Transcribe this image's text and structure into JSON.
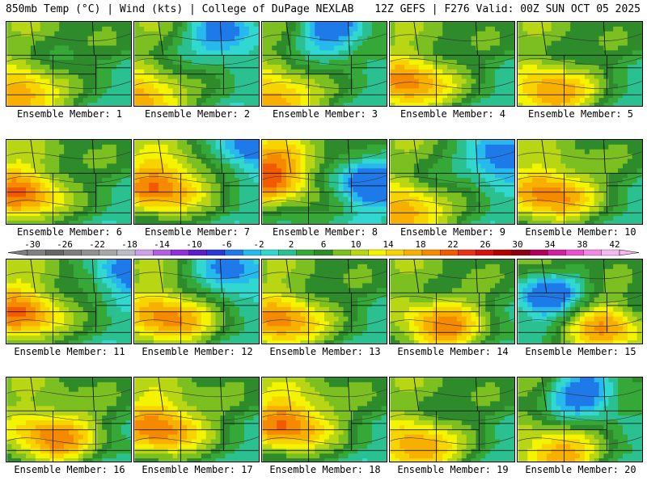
{
  "header": {
    "title_left": "850mb Temp (°C) | Wind (kts) | College of DuPage NEXLAB",
    "title_right": "12Z GEFS | F276 Valid: 00Z SUN OCT 05 2025"
  },
  "label_prefix": "Ensemble Member: ",
  "members": [
    {
      "id": "1",
      "warm": [
        0.1,
        0.9
      ],
      "cool": null
    },
    {
      "id": "2",
      "warm": [
        0.05,
        0.95
      ],
      "cool": [
        0.7,
        0.1
      ]
    },
    {
      "id": "3",
      "warm": [
        0.1,
        0.95
      ],
      "cool": [
        0.55,
        0.05
      ]
    },
    {
      "id": "4",
      "warm": [
        0.15,
        0.75
      ],
      "cool": null
    },
    {
      "id": "5",
      "warm": [
        0.25,
        0.85
      ],
      "cool": null
    },
    {
      "id": "6",
      "warm": [
        0.1,
        0.65
      ],
      "cool": null
    },
    {
      "id": "7",
      "warm": [
        0.2,
        0.55
      ],
      "cool": [
        0.9,
        0.05
      ]
    },
    {
      "id": "8",
      "warm": [
        0.05,
        0.4
      ],
      "cool": [
        0.85,
        0.45
      ]
    },
    {
      "id": "9",
      "warm": [
        0.1,
        0.9
      ],
      "cool": [
        0.85,
        0.15
      ]
    },
    {
      "id": "10",
      "warm": [
        0.25,
        0.65
      ],
      "cool": null
    },
    {
      "id": "11",
      "warm": [
        0.1,
        0.65
      ],
      "cool": [
        0.95,
        0.1
      ]
    },
    {
      "id": "12",
      "warm": [
        0.25,
        0.7
      ],
      "cool": [
        0.75,
        0.1
      ]
    },
    {
      "id": "13",
      "warm": [
        0.15,
        0.75
      ],
      "cool": null
    },
    {
      "id": "14",
      "warm": [
        0.4,
        0.8
      ],
      "cool": null
    },
    {
      "id": "15",
      "warm": [
        0.7,
        0.85
      ],
      "cool": [
        0.2,
        0.4
      ]
    },
    {
      "id": "16",
      "warm": [
        0.35,
        0.7
      ],
      "cool": null
    },
    {
      "id": "17",
      "warm": [
        0.2,
        0.6
      ],
      "cool": null
    },
    {
      "id": "18",
      "warm": [
        0.2,
        0.55
      ],
      "cool": null
    },
    {
      "id": "19",
      "warm": [
        0.2,
        0.85
      ],
      "cool": null
    },
    {
      "id": "20",
      "warm": [
        0.3,
        0.95
      ],
      "cool": [
        0.5,
        0.15
      ]
    }
  ],
  "colorbar": {
    "ticks": [
      "-30",
      "-26",
      "-22",
      "-18",
      "-14",
      "-10",
      "-6",
      "-2",
      "2",
      "6",
      "10",
      "14",
      "18",
      "22",
      "26",
      "30",
      "34",
      "38",
      "42"
    ],
    "colors": [
      "#7f7f7f",
      "#666666",
      "#7d7d7d",
      "#909090",
      "#a7a7a7",
      "#bcbcc8",
      "#cfa0e8",
      "#b060e0",
      "#9030d8",
      "#5a1fc8",
      "#2a3ad8",
      "#1e7ae8",
      "#27b9ee",
      "#30d8d0",
      "#2bc090",
      "#35a838",
      "#2e8b2b",
      "#7bbf20",
      "#b8d614",
      "#f4f400",
      "#f7d400",
      "#f8b000",
      "#f58a00",
      "#f25a00",
      "#e83218",
      "#d41010",
      "#b00000",
      "#8a0010",
      "#b0005a",
      "#d020a0",
      "#e850d0",
      "#f08ae0",
      "#f4b8f0"
    ]
  }
}
